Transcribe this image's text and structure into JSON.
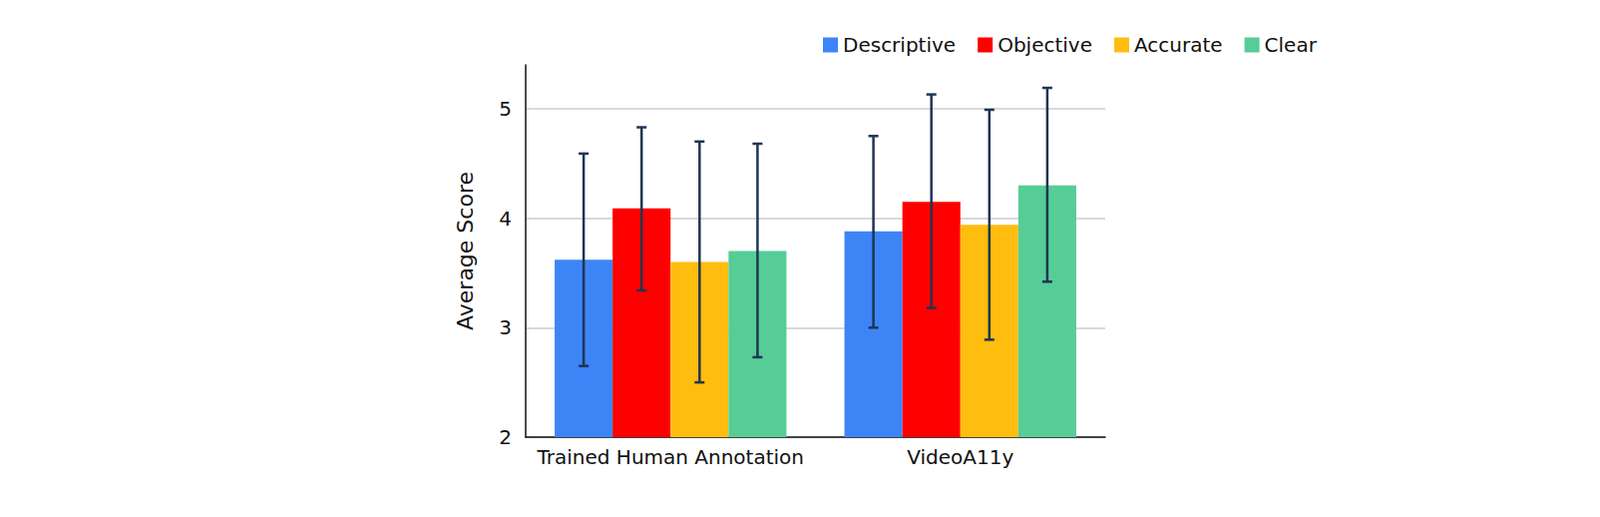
{
  "chart_data": {
    "type": "bar",
    "y_label": "Average Score",
    "categories": [
      "Trained Human Annotation",
      "VideoA11y"
    ],
    "series": [
      {
        "name": "Descriptive",
        "color": "#3d85f7",
        "values": [
          3.62,
          3.88
        ],
        "errors": [
          [
            2.65,
            4.59
          ],
          [
            3.0,
            4.75
          ]
        ]
      },
      {
        "name": "Objective",
        "color": "#ff0000",
        "values": [
          4.09,
          4.15
        ],
        "errors": [
          [
            3.34,
            4.83
          ],
          [
            3.18,
            5.13
          ]
        ]
      },
      {
        "name": "Accurate",
        "color": "#ffbd0f",
        "values": [
          3.6,
          3.94
        ],
        "errors": [
          [
            2.5,
            4.7
          ],
          [
            2.89,
            4.99
          ]
        ]
      },
      {
        "name": "Clear",
        "color": "#56cc97",
        "values": [
          3.7,
          4.3
        ],
        "errors": [
          [
            2.73,
            4.68
          ],
          [
            3.42,
            5.19
          ]
        ]
      }
    ],
    "ylim": [
      2,
      5.4
    ],
    "yticks": [
      2,
      3,
      4,
      5
    ],
    "grid": true,
    "legend": "top"
  }
}
